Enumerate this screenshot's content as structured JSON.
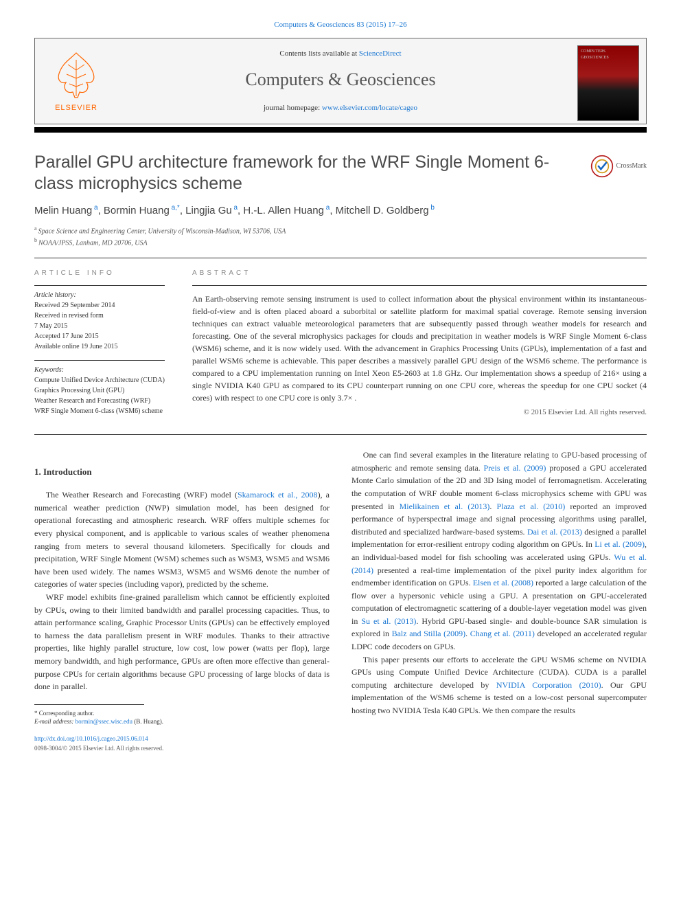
{
  "top_link_prefix": "",
  "top_link": "Computers & Geosciences 83 (2015) 17–26",
  "header": {
    "contents_prefix": "Contents lists available at ",
    "contents_link": "ScienceDirect",
    "journal_name": "Computers & Geosciences",
    "homepage_prefix": "journal homepage: ",
    "homepage_link": "www.elsevier.com/locate/cageo",
    "publisher_logo_text": "ELSEVIER"
  },
  "title": "Parallel GPU architecture framework for the WRF Single Moment 6-class microphysics scheme",
  "crossmark_label": "CrossMark",
  "authors": [
    {
      "name": "Melin Huang",
      "sup": "a"
    },
    {
      "name": "Bormin Huang",
      "sup": "a,*"
    },
    {
      "name": "Lingjia Gu",
      "sup": "a"
    },
    {
      "name": "H.-L. Allen Huang",
      "sup": "a"
    },
    {
      "name": "Mitchell D. Goldberg",
      "sup": "b"
    }
  ],
  "affiliations": [
    {
      "sup": "a",
      "text": "Space Science and Engineering Center, University of Wisconsin-Madison, WI 53706, USA"
    },
    {
      "sup": "b",
      "text": "NOAA/JPSS, Lanham, MD 20706, USA"
    }
  ],
  "article_info": {
    "heading": "ARTICLE INFO",
    "history_label": "Article history:",
    "history": [
      "Received 29 September 2014",
      "Received in revised form",
      "7 May 2015",
      "Accepted 17 June 2015",
      "Available online 19 June 2015"
    ],
    "keywords_label": "Keywords:",
    "keywords": [
      "Compute Unified Device Architecture (CUDA)",
      "Graphics Processing Unit (GPU)",
      "Weather Research and Forecasting (WRF)",
      "WRF Single Moment 6-class (WSM6) scheme"
    ]
  },
  "abstract": {
    "heading": "ABSTRACT",
    "text": "An Earth-observing remote sensing instrument is used to collect information about the physical environment within its instantaneous-field-of-view and is often placed aboard a suborbital or satellite platform for maximal spatial coverage. Remote sensing inversion techniques can extract valuable meteorological parameters that are subsequently passed through weather models for research and forecasting. One of the several microphysics packages for clouds and precipitation in weather models is WRF Single Moment 6-class (WSM6) scheme, and it is now widely used. With the advancement in Graphics Processing Units (GPUs), implementation of a fast and parallel WSM6 scheme is achievable. This paper describes a massively parallel GPU design of the WSM6 scheme. The performance is compared to a CPU implementation running on Intel Xeon E5-2603 at 1.8 GHz. Our implementation shows a speedup of 216×  using a single NVIDIA K40 GPU as compared to its CPU counterpart running on one CPU core, whereas the speedup for one CPU socket (4 cores) with respect to one CPU core is only 3.7× .",
    "copyright": "© 2015 Elsevier Ltd. All rights reserved."
  },
  "section1_heading": "1.  Introduction",
  "body": {
    "left": [
      {
        "html": "The Weather Research and Forecasting (WRF) model (<span class='cite'>Skamarock et al., 2008</span>), a numerical weather prediction (NWP) simulation model, has been designed for operational forecasting and atmospheric research. WRF offers multiple schemes for every physical component, and is applicable to various scales of weather phenomena ranging from meters to several thousand kilometers. Specifically for clouds and precipitation, WRF Single Moment (WSM) schemes such as WSM3, WSM5 and WSM6 have been used widely. The names WSM3, WSM5 and WSM6 denote the number of categories of water species (including vapor), predicted by the scheme."
      },
      {
        "html": "WRF model exhibits fine-grained parallelism which cannot be efficiently exploited by CPUs, owing to their limited bandwidth and parallel processing capacities. Thus, to attain performance scaling, Graphic Processor Units (GPUs) can be effectively employed to harness the data parallelism present in WRF modules. Thanks to their attractive properties, like highly parallel structure, low cost, low power (watts per flop), large memory bandwidth, and high performance, GPUs are often more effective than general-purpose CPUs for certain algorithms because GPU processing of large blocks of data is done in parallel."
      }
    ],
    "right": [
      {
        "html": "One can find several examples in the literature relating to GPU-based processing of atmospheric and remote sensing data. <span class='cite'>Preis et al. (2009)</span> proposed a GPU accelerated Monte Carlo simulation of the 2D and 3D Ising model of ferromagnetism. Accelerating the computation of WRF double moment 6-class microphysics scheme with GPU was presented in <span class='cite'>Mielikainen et al. (2013)</span>. <span class='cite'>Plaza et al. (2010)</span> reported an improved performance of hyperspectral image and signal processing algorithms using parallel, distributed and specialized hardware-based systems. <span class='cite'>Dai et al. (2013)</span> designed a parallel implementation for error-resilient entropy coding algorithm on GPUs. In <span class='cite'>Li et al. (2009)</span>, an individual-based model for fish schooling was accelerated using GPUs. <span class='cite'>Wu et al. (2014)</span> presented a real-time implementation of the pixel purity index algorithm for endmember identification on GPUs. <span class='cite'>Elsen et al. (2008)</span> reported a large calculation of the flow over a hypersonic vehicle using a GPU. A presentation on GPU-accelerated computation of electromagnetic scattering of a double-layer vegetation model was given in <span class='cite'>Su et al. (2013)</span>. Hybrid GPU-based single- and double-bounce SAR simulation is explored in <span class='cite'>Balz and Stilla (2009)</span>. <span class='cite'>Chang et al. (2011)</span> developed an accelerated regular LDPC code decoders on GPUs."
      },
      {
        "html": "This paper presents our efforts to accelerate the GPU WSM6 scheme on NVIDIA GPUs using Compute Unified Device Architecture (CUDA). CUDA is a parallel computing architecture developed by <span class='cite'>NVIDIA Corporation (2010)</span>. Our GPU implementation of the WSM6 scheme is tested on a low-cost personal supercomputer hosting two NVIDIA Tesla K40 GPUs. We then compare the results"
      }
    ]
  },
  "footnote": {
    "corr_label": "* Corresponding author.",
    "email_label": "E-mail address:",
    "email": "bormin@ssec.wisc.edu",
    "email_suffix": "(B. Huang)."
  },
  "doi": {
    "link": "http://dx.doi.org/10.1016/j.cageo.2015.06.014",
    "issn": "0098-3004/© 2015 Elsevier Ltd. All rights reserved."
  }
}
